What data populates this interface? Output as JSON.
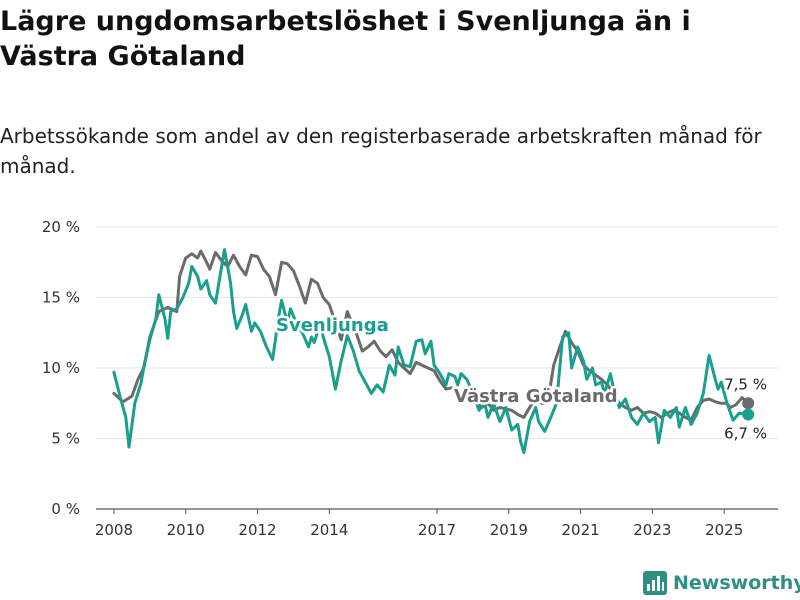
{
  "title": "Lägre ungdomsarbetslöshet i Svenljunga än i Västra Götaland",
  "subtitle": "Arbetssökande som andel av den registerbaserade arbetskraften månad för månad.",
  "brand": {
    "name": "Newsworthy",
    "color": "#2f8f83",
    "icon": "bar-chart-logo-icon"
  },
  "chart_data": {
    "type": "line",
    "title": "Lägre ungdomsarbetslöshet i Svenljunga än i Västra Götaland",
    "xlabel": "",
    "ylabel": "",
    "ylim": [
      0,
      20
    ],
    "xlim": [
      2007.5,
      2026.5
    ],
    "yticks": [
      0,
      5,
      10,
      15,
      20
    ],
    "ytick_labels": [
      "0 %",
      "5 %",
      "10 %",
      "15 %",
      "20 %"
    ],
    "xticks": [
      2008,
      2010,
      2012,
      2014,
      2017,
      2019,
      2021,
      2023,
      2025
    ],
    "xtick_labels": [
      "2008",
      "2010",
      "2012",
      "2014",
      "2017",
      "2019",
      "2021",
      "2023",
      "2025"
    ],
    "series": [
      {
        "name": "Svenljunga",
        "label": "Svenljunga",
        "color": "#1a9e8f",
        "end_label": "6,7 %",
        "points": [
          [
            2008.0,
            9.7
          ],
          [
            2008.17,
            8.0
          ],
          [
            2008.33,
            6.5
          ],
          [
            2008.42,
            4.4
          ],
          [
            2008.58,
            7.5
          ],
          [
            2008.75,
            8.9
          ],
          [
            2008.83,
            10.0
          ],
          [
            2009.0,
            12.0
          ],
          [
            2009.17,
            13.5
          ],
          [
            2009.25,
            15.2
          ],
          [
            2009.42,
            13.5
          ],
          [
            2009.5,
            12.1
          ],
          [
            2009.58,
            14.0
          ],
          [
            2009.75,
            14.2
          ],
          [
            2009.92,
            15.0
          ],
          [
            2010.08,
            16.0
          ],
          [
            2010.17,
            17.2
          ],
          [
            2010.33,
            16.5
          ],
          [
            2010.42,
            15.6
          ],
          [
            2010.58,
            16.2
          ],
          [
            2010.67,
            15.2
          ],
          [
            2010.83,
            14.6
          ],
          [
            2010.92,
            16.0
          ],
          [
            2011.08,
            18.4
          ],
          [
            2011.25,
            16.0
          ],
          [
            2011.33,
            14.0
          ],
          [
            2011.42,
            12.8
          ],
          [
            2011.58,
            13.8
          ],
          [
            2011.67,
            14.5
          ],
          [
            2011.83,
            12.6
          ],
          [
            2011.92,
            13.2
          ],
          [
            2012.08,
            12.6
          ],
          [
            2012.25,
            11.5
          ],
          [
            2012.42,
            10.6
          ],
          [
            2012.58,
            13.5
          ],
          [
            2012.67,
            14.8
          ],
          [
            2012.83,
            13.2
          ],
          [
            2012.92,
            14.2
          ],
          [
            2013.08,
            13.2
          ],
          [
            2013.25,
            12.5
          ],
          [
            2013.42,
            11.5
          ],
          [
            2013.5,
            12.2
          ],
          [
            2013.58,
            11.8
          ],
          [
            2013.75,
            13.2
          ],
          [
            2013.83,
            12.2
          ],
          [
            2014.0,
            10.8
          ],
          [
            2014.17,
            8.5
          ],
          [
            2014.33,
            10.5
          ],
          [
            2014.5,
            12.3
          ],
          [
            2014.67,
            11.2
          ],
          [
            2014.83,
            9.8
          ],
          [
            2015.0,
            9.0
          ],
          [
            2015.17,
            8.2
          ],
          [
            2015.33,
            8.8
          ],
          [
            2015.5,
            8.3
          ],
          [
            2015.67,
            10.2
          ],
          [
            2015.83,
            9.5
          ],
          [
            2015.92,
            11.5
          ],
          [
            2016.08,
            10.2
          ],
          [
            2016.25,
            10.1
          ],
          [
            2016.42,
            11.9
          ],
          [
            2016.58,
            12.0
          ],
          [
            2016.67,
            11.0
          ],
          [
            2016.83,
            11.9
          ],
          [
            2016.92,
            10.2
          ],
          [
            2017.08,
            9.6
          ],
          [
            2017.25,
            8.8
          ],
          [
            2017.33,
            9.6
          ],
          [
            2017.5,
            9.4
          ],
          [
            2017.58,
            8.8
          ],
          [
            2017.67,
            9.6
          ],
          [
            2017.83,
            9.2
          ],
          [
            2018.0,
            8.2
          ],
          [
            2018.17,
            7.0
          ],
          [
            2018.33,
            7.5
          ],
          [
            2018.42,
            6.5
          ],
          [
            2018.58,
            7.5
          ],
          [
            2018.75,
            6.2
          ],
          [
            2018.92,
            7.2
          ],
          [
            2019.08,
            5.6
          ],
          [
            2019.25,
            6.0
          ],
          [
            2019.33,
            4.8
          ],
          [
            2019.42,
            4.0
          ],
          [
            2019.58,
            6.2
          ],
          [
            2019.75,
            7.2
          ],
          [
            2019.83,
            6.2
          ],
          [
            2020.0,
            5.5
          ],
          [
            2020.17,
            6.5
          ],
          [
            2020.33,
            7.5
          ],
          [
            2020.5,
            12.2
          ],
          [
            2020.67,
            12.5
          ],
          [
            2020.75,
            10.0
          ],
          [
            2020.92,
            11.5
          ],
          [
            2021.08,
            10.5
          ],
          [
            2021.17,
            9.2
          ],
          [
            2021.33,
            10.0
          ],
          [
            2021.42,
            8.8
          ],
          [
            2021.58,
            9.0
          ],
          [
            2021.67,
            8.2
          ],
          [
            2021.83,
            9.6
          ],
          [
            2021.92,
            8.5
          ],
          [
            2022.08,
            7.2
          ],
          [
            2022.25,
            7.8
          ],
          [
            2022.42,
            6.5
          ],
          [
            2022.58,
            6.0
          ],
          [
            2022.75,
            6.8
          ],
          [
            2022.92,
            6.2
          ],
          [
            2023.08,
            6.5
          ],
          [
            2023.17,
            4.7
          ],
          [
            2023.33,
            7.0
          ],
          [
            2023.5,
            6.5
          ],
          [
            2023.67,
            7.2
          ],
          [
            2023.75,
            5.8
          ],
          [
            2023.92,
            7.2
          ],
          [
            2024.08,
            6.0
          ],
          [
            2024.25,
            6.8
          ],
          [
            2024.42,
            8.2
          ],
          [
            2024.58,
            10.9
          ],
          [
            2024.75,
            9.2
          ],
          [
            2024.83,
            8.5
          ],
          [
            2024.92,
            9.0
          ],
          [
            2025.08,
            7.5
          ],
          [
            2025.25,
            6.3
          ],
          [
            2025.42,
            6.8
          ],
          [
            2025.67,
            6.7
          ]
        ]
      },
      {
        "name": "Västra Götaland",
        "label": "Västra Götaland",
        "color": "#6b6b6b",
        "end_label": "7,5 %",
        "points": [
          [
            2008.0,
            8.2
          ],
          [
            2008.25,
            7.6
          ],
          [
            2008.5,
            8.0
          ],
          [
            2008.67,
            9.2
          ],
          [
            2008.83,
            10.0
          ],
          [
            2009.0,
            12.2
          ],
          [
            2009.25,
            14.0
          ],
          [
            2009.5,
            14.3
          ],
          [
            2009.75,
            14.0
          ],
          [
            2009.83,
            16.5
          ],
          [
            2010.0,
            17.8
          ],
          [
            2010.17,
            18.1
          ],
          [
            2010.33,
            17.8
          ],
          [
            2010.42,
            18.3
          ],
          [
            2010.58,
            17.5
          ],
          [
            2010.67,
            17.0
          ],
          [
            2010.83,
            18.2
          ],
          [
            2011.0,
            17.6
          ],
          [
            2011.17,
            17.2
          ],
          [
            2011.33,
            18.0
          ],
          [
            2011.5,
            17.2
          ],
          [
            2011.67,
            16.6
          ],
          [
            2011.83,
            18.0
          ],
          [
            2012.0,
            17.9
          ],
          [
            2012.17,
            17.0
          ],
          [
            2012.33,
            16.5
          ],
          [
            2012.5,
            15.2
          ],
          [
            2012.67,
            17.5
          ],
          [
            2012.83,
            17.4
          ],
          [
            2013.0,
            16.9
          ],
          [
            2013.17,
            15.8
          ],
          [
            2013.33,
            14.6
          ],
          [
            2013.5,
            16.3
          ],
          [
            2013.67,
            16.0
          ],
          [
            2013.83,
            15.0
          ],
          [
            2014.0,
            14.5
          ],
          [
            2014.17,
            13.2
          ],
          [
            2014.33,
            12.0
          ],
          [
            2014.5,
            14.0
          ],
          [
            2014.58,
            13.5
          ],
          [
            2014.75,
            12.5
          ],
          [
            2014.92,
            11.2
          ],
          [
            2015.08,
            11.5
          ],
          [
            2015.25,
            11.9
          ],
          [
            2015.42,
            11.2
          ],
          [
            2015.58,
            10.8
          ],
          [
            2015.75,
            11.3
          ],
          [
            2015.92,
            10.4
          ],
          [
            2016.08,
            10.0
          ],
          [
            2016.25,
            9.6
          ],
          [
            2016.42,
            10.4
          ],
          [
            2016.58,
            10.2
          ],
          [
            2016.75,
            10.0
          ],
          [
            2016.92,
            9.8
          ],
          [
            2017.08,
            9.1
          ],
          [
            2017.25,
            8.5
          ],
          [
            2017.42,
            8.6
          ],
          [
            2017.58,
            8.3
          ],
          [
            2017.75,
            8.2
          ],
          [
            2017.92,
            7.8
          ],
          [
            2018.08,
            7.6
          ],
          [
            2018.25,
            7.2
          ],
          [
            2018.42,
            7.5
          ],
          [
            2018.58,
            7.0
          ],
          [
            2018.75,
            7.2
          ],
          [
            2018.92,
            7.1
          ],
          [
            2019.08,
            7.0
          ],
          [
            2019.25,
            6.7
          ],
          [
            2019.42,
            6.5
          ],
          [
            2019.58,
            7.2
          ],
          [
            2019.75,
            7.8
          ],
          [
            2019.92,
            7.5
          ],
          [
            2020.08,
            7.5
          ],
          [
            2020.25,
            10.2
          ],
          [
            2020.42,
            11.5
          ],
          [
            2020.58,
            12.6
          ],
          [
            2020.75,
            11.8
          ],
          [
            2020.92,
            11.2
          ],
          [
            2021.08,
            10.2
          ],
          [
            2021.25,
            9.8
          ],
          [
            2021.42,
            9.5
          ],
          [
            2021.58,
            9.2
          ],
          [
            2021.75,
            8.8
          ],
          [
            2021.92,
            8.2
          ],
          [
            2022.08,
            7.5
          ],
          [
            2022.25,
            7.2
          ],
          [
            2022.42,
            7.0
          ],
          [
            2022.58,
            7.2
          ],
          [
            2022.75,
            6.8
          ],
          [
            2022.92,
            6.9
          ],
          [
            2023.08,
            6.8
          ],
          [
            2023.25,
            6.5
          ],
          [
            2023.42,
            6.8
          ],
          [
            2023.58,
            7.0
          ],
          [
            2023.75,
            6.8
          ],
          [
            2023.92,
            6.5
          ],
          [
            2024.08,
            6.3
          ],
          [
            2024.25,
            7.2
          ],
          [
            2024.42,
            7.7
          ],
          [
            2024.58,
            7.8
          ],
          [
            2024.75,
            7.6
          ],
          [
            2024.92,
            7.5
          ],
          [
            2025.08,
            7.5
          ],
          [
            2025.17,
            7.2
          ],
          [
            2025.33,
            7.4
          ],
          [
            2025.5,
            7.9
          ],
          [
            2025.67,
            7.5
          ]
        ]
      }
    ]
  }
}
